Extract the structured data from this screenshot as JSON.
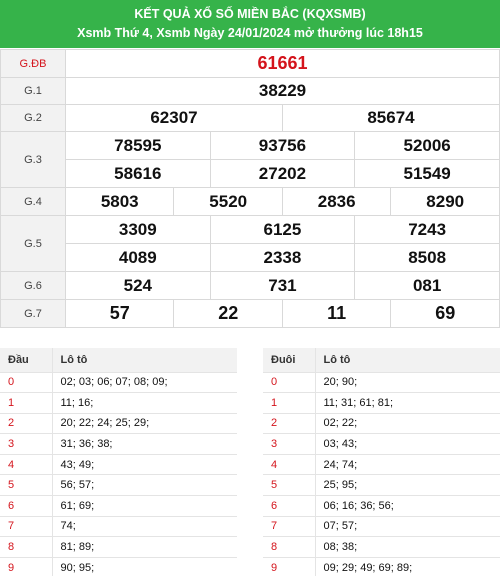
{
  "header": {
    "title": "KẾT QUẢ XỔ SỐ MIỀN BẮC (KQXSMB)",
    "subtitle": "Xsmb Thứ 4, Xsmb Ngày 24/01/2024 mở thưởng lúc 18h15"
  },
  "prizes": [
    {
      "label": "G.ĐB",
      "numbers": [
        "61661"
      ]
    },
    {
      "label": "G.1",
      "numbers": [
        "38229"
      ]
    },
    {
      "label": "G.2",
      "numbers": [
        "62307",
        "85674"
      ]
    },
    {
      "label": "G.3",
      "numbers": [
        "78595",
        "93756",
        "52006",
        "58616",
        "27202",
        "51549"
      ]
    },
    {
      "label": "G.4",
      "numbers": [
        "5803",
        "5520",
        "2836",
        "8290"
      ]
    },
    {
      "label": "G.5",
      "numbers": [
        "3309",
        "6125",
        "7243",
        "4089",
        "2338",
        "8508"
      ]
    },
    {
      "label": "G.6",
      "numbers": [
        "524",
        "731",
        "081"
      ]
    },
    {
      "label": "G.7",
      "numbers": [
        "57",
        "22",
        "11",
        "69"
      ]
    }
  ],
  "dau": {
    "col1": "Đầu",
    "col2": "Lô tô",
    "rows": [
      {
        "k": "0",
        "v": "02; 03; 06; 07; 08; 09;"
      },
      {
        "k": "1",
        "v": "11; 16;"
      },
      {
        "k": "2",
        "v": "20; 22; 24; 25; 29;"
      },
      {
        "k": "3",
        "v": "31; 36; 38;"
      },
      {
        "k": "4",
        "v": "43; 49;"
      },
      {
        "k": "5",
        "v": "56; 57;"
      },
      {
        "k": "6",
        "v": "61; 69;"
      },
      {
        "k": "7",
        "v": "74;"
      },
      {
        "k": "8",
        "v": "81; 89;"
      },
      {
        "k": "9",
        "v": "90; 95;"
      }
    ]
  },
  "duoi": {
    "col1": "Đuôi",
    "col2": "Lô tô",
    "rows": [
      {
        "k": "0",
        "v": "20; 90;"
      },
      {
        "k": "1",
        "v": "11; 31; 61; 81;"
      },
      {
        "k": "2",
        "v": "02; 22;"
      },
      {
        "k": "3",
        "v": "03; 43;"
      },
      {
        "k": "4",
        "v": "24; 74;"
      },
      {
        "k": "5",
        "v": "25; 95;"
      },
      {
        "k": "6",
        "v": "06; 16; 36; 56;"
      },
      {
        "k": "7",
        "v": "07; 57;"
      },
      {
        "k": "8",
        "v": "08; 38;"
      },
      {
        "k": "9",
        "v": "09; 29; 49; 69; 89;"
      }
    ]
  },
  "colors": {
    "header_bg": "#36b34a",
    "special": "#d4141c"
  }
}
